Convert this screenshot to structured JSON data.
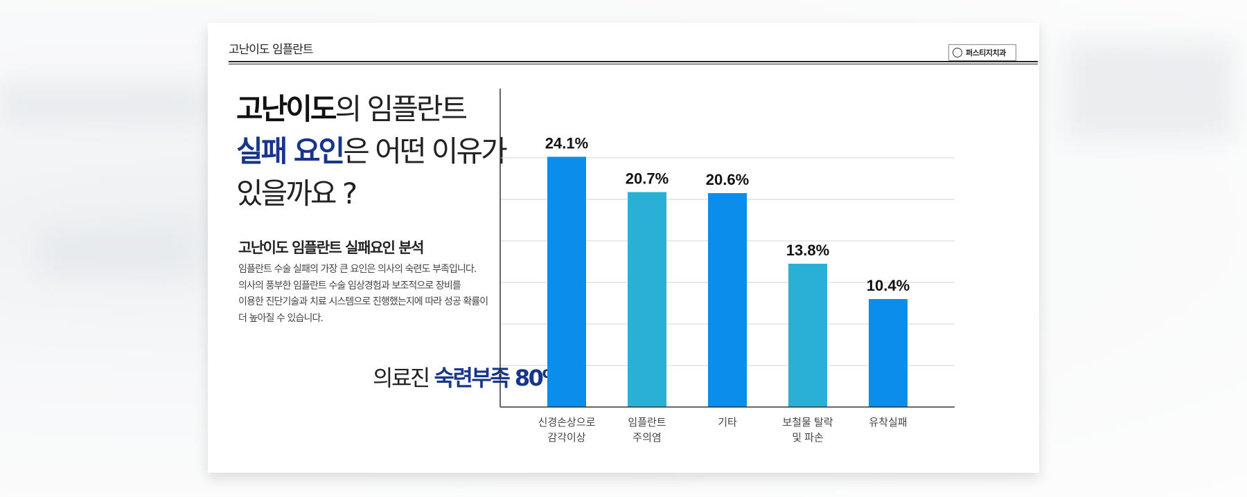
{
  "header": {
    "title": "고난이도 임플란트",
    "logo_text": "퍼스티지치과"
  },
  "headline": {
    "line1_bold": "고난이도",
    "line1_rest": "의 임플란트",
    "line2_bold": "실패 요인",
    "line2_rest": "은 어떤 이유가",
    "line3": "있을까요 ?"
  },
  "section": {
    "subtitle": "고난이도 임플란트 실패요인 분석",
    "body": [
      "임플란트 수술 실패의 가장 큰 요인은 의사의 숙련도 부족입니다.",
      "의사의 풍부한 임플란트 수술 임상경험과 보조적으로 장비를",
      "이용한 진단기술과 치료 시스템으로 진행했는지에 따라 성공 확률이",
      "더 높아질 수 있습니다."
    ],
    "highlight_prefix": "의료진 ",
    "highlight_bold": "숙련부족 80%"
  },
  "colors": {
    "blue": "#0a8deb",
    "teal": "#2ab0d6",
    "navy": "#17358a"
  },
  "chart_data": {
    "type": "bar",
    "categories": [
      [
        "신경손상으로",
        "감각이상"
      ],
      [
        "임플란트",
        "주의염"
      ],
      [
        "기타"
      ],
      [
        "보철물 탈락",
        "및 파손"
      ],
      [
        "유착실패"
      ]
    ],
    "values": [
      24.1,
      20.7,
      20.6,
      13.8,
      10.4
    ],
    "value_labels": [
      "24.1%",
      "20.7%",
      "20.6%",
      "13.8%",
      "10.4%"
    ],
    "bar_colors": [
      "#0a8deb",
      "#2ab0d6",
      "#0a8deb",
      "#2ab0d6",
      "#0a8deb"
    ],
    "ylim": [
      0,
      28
    ],
    "grid": true,
    "gridlines": [
      0,
      4,
      8,
      12,
      16,
      20,
      24
    ],
    "title": "",
    "xlabel": "",
    "ylabel": ""
  }
}
